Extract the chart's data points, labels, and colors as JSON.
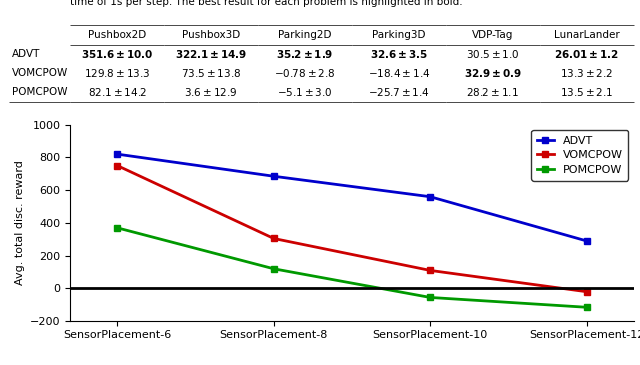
{
  "caption": "time of 1s per step. The best result for each problem is highlighted in bold.",
  "col_labels": [
    "Pushbox2D",
    "Pushbox3D",
    "Parking2D",
    "Parking3D",
    "VDP-Tag",
    "LunarLander"
  ],
  "row_labels": [
    "ADVT",
    "VOMCPOW",
    "POMCPOW"
  ],
  "cell_text": [
    [
      "$\\mathbf{351.6 \\pm 10.0}$",
      "$\\mathbf{322.1 \\pm 14.9}$",
      "$\\mathbf{35.2 \\pm 1.9}$",
      "$\\mathbf{32.6 \\pm 3.5}$",
      "$30.5 \\pm 1.0$",
      "$\\mathbf{26.01 \\pm 1.2}$"
    ],
    [
      "$129.8 \\pm 13.3$",
      "$73.5 \\pm 13.8$",
      "$-0.78 \\pm 2.8$",
      "$-18.4 \\pm 1.4$",
      "$\\mathbf{32.9 \\pm 0.9}$",
      "$13.3 \\pm 2.2$"
    ],
    [
      "$82.1 \\pm 14.2$",
      "$3.6 \\pm 12.9$",
      "$-5.1 \\pm 3.0$",
      "$-25.7 \\pm 1.4$",
      "$28.2 \\pm 1.1$",
      "$13.5 \\pm 2.1$"
    ]
  ],
  "x_labels": [
    "SensorPlacement-6",
    "SensorPlacement-8",
    "SensorPlacement-10",
    "SensorPlacement-12"
  ],
  "x_values": [
    0,
    1,
    2,
    3
  ],
  "series": [
    {
      "name": "ADVT",
      "color": "#0000cc",
      "marker": "s",
      "values": [
        820,
        685,
        560,
        290
      ]
    },
    {
      "name": "VOMCPOW",
      "color": "#cc0000",
      "marker": "s",
      "values": [
        750,
        305,
        110,
        -20
      ]
    },
    {
      "name": "POMCPOW",
      "color": "#009900",
      "marker": "s",
      "values": [
        370,
        120,
        -55,
        -115
      ]
    }
  ],
  "ylabel": "Avg. total disc. reward",
  "ylim": [
    -200,
    1000
  ],
  "yticks": [
    -200,
    0,
    200,
    400,
    600,
    800,
    1000
  ],
  "hline_y": 0,
  "hline_color": "#000000"
}
